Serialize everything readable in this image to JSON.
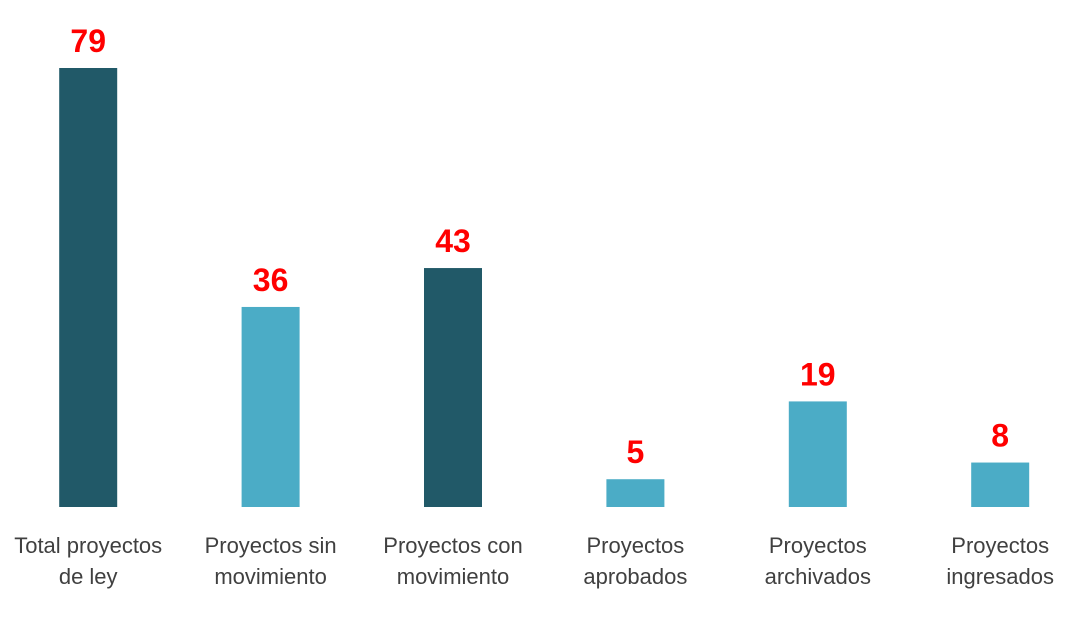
{
  "chart_data": {
    "type": "bar",
    "categories": [
      "Total proyectos de ley",
      "Proyectos sin movimiento",
      "Proyectos con movimiento",
      "Proyectos aprobados",
      "Proyectos archivados",
      "Proyectos ingresados"
    ],
    "values": [
      79,
      36,
      43,
      5,
      19,
      8
    ],
    "colors": [
      "#215968",
      "#4bacc6",
      "#215968",
      "#4bacc6",
      "#4bacc6",
      "#4bacc6"
    ],
    "value_label_color": "#ff0000"
  }
}
